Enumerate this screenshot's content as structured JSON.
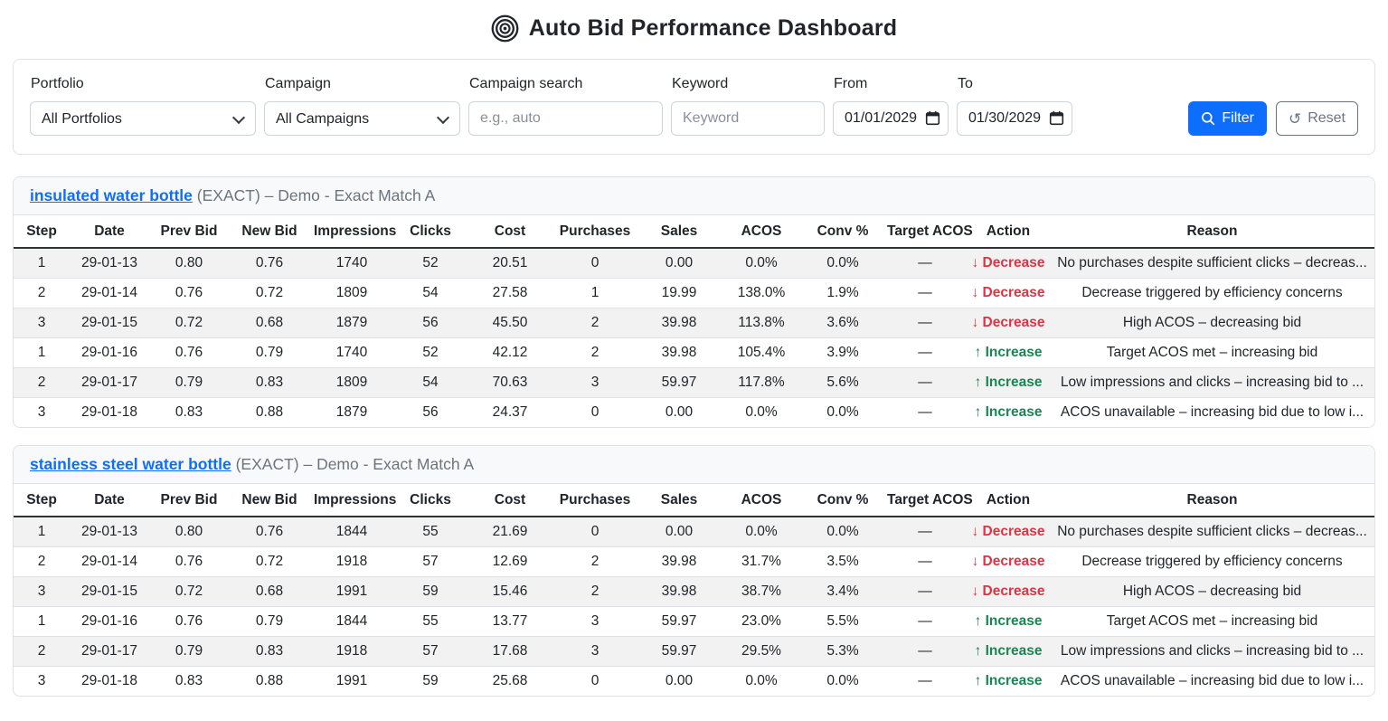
{
  "header": {
    "title": "Auto Bid Performance Dashboard"
  },
  "filters": {
    "portfolio": {
      "label": "Portfolio",
      "value": "All Portfolios"
    },
    "campaign": {
      "label": "Campaign",
      "value": "All Campaigns"
    },
    "campaign_search": {
      "label": "Campaign search",
      "placeholder": "e.g., auto"
    },
    "keyword": {
      "label": "Keyword",
      "placeholder": "Keyword"
    },
    "from": {
      "label": "From",
      "value": "01/01/2029"
    },
    "to": {
      "label": "To",
      "value": "01/30/2029"
    },
    "filter_button": "Filter",
    "reset_button": "Reset",
    "reset_icon_glyph": "↺"
  },
  "colors": {
    "accent_blue": "#0d6efd",
    "decrease_red": "#dc3545",
    "increase_green": "#198754",
    "muted_gray": "#6c757d"
  },
  "table_columns": [
    "Step",
    "Date",
    "Prev Bid",
    "New Bid",
    "Impressions",
    "Clicks",
    "Cost",
    "Purchases",
    "Sales",
    "ACOS",
    "Conv %",
    "Target ACOS",
    "Action",
    "Reason"
  ],
  "tables": [
    {
      "keyword": "insulated water bottle",
      "suffix": "(EXACT) – Demo - Exact Match A",
      "rows": [
        {
          "cells": [
            "1",
            "29-01-13",
            "0.80",
            "0.76",
            "1740",
            "52",
            "20.51",
            "0",
            "0.00",
            "0.0%",
            "0.0%",
            "—"
          ],
          "action": {
            "arrow": "↓",
            "label": "Decrease",
            "direction": "down"
          },
          "reason": "No purchases despite sufficient clicks – decreas..."
        },
        {
          "cells": [
            "2",
            "29-01-14",
            "0.76",
            "0.72",
            "1809",
            "54",
            "27.58",
            "1",
            "19.99",
            "138.0%",
            "1.9%",
            "—"
          ],
          "action": {
            "arrow": "↓",
            "label": "Decrease",
            "direction": "down"
          },
          "reason": "Decrease triggered by efficiency concerns"
        },
        {
          "cells": [
            "3",
            "29-01-15",
            "0.72",
            "0.68",
            "1879",
            "56",
            "45.50",
            "2",
            "39.98",
            "113.8%",
            "3.6%",
            "—"
          ],
          "action": {
            "arrow": "↓",
            "label": "Decrease",
            "direction": "down"
          },
          "reason": "High ACOS – decreasing bid"
        },
        {
          "cells": [
            "1",
            "29-01-16",
            "0.76",
            "0.79",
            "1740",
            "52",
            "42.12",
            "2",
            "39.98",
            "105.4%",
            "3.9%",
            "—"
          ],
          "action": {
            "arrow": "↑",
            "label": "Increase",
            "direction": "up"
          },
          "reason": "Target ACOS met – increasing bid"
        },
        {
          "cells": [
            "2",
            "29-01-17",
            "0.79",
            "0.83",
            "1809",
            "54",
            "70.63",
            "3",
            "59.97",
            "117.8%",
            "5.6%",
            "—"
          ],
          "action": {
            "arrow": "↑",
            "label": "Increase",
            "direction": "up"
          },
          "reason": "Low impressions and clicks – increasing bid to ..."
        },
        {
          "cells": [
            "3",
            "29-01-18",
            "0.83",
            "0.88",
            "1879",
            "56",
            "24.37",
            "0",
            "0.00",
            "0.0%",
            "0.0%",
            "—"
          ],
          "action": {
            "arrow": "↑",
            "label": "Increase",
            "direction": "up"
          },
          "reason": "ACOS unavailable – increasing bid due to low i..."
        }
      ]
    },
    {
      "keyword": "stainless steel water bottle",
      "suffix": "(EXACT) – Demo - Exact Match A",
      "rows": [
        {
          "cells": [
            "1",
            "29-01-13",
            "0.80",
            "0.76",
            "1844",
            "55",
            "21.69",
            "0",
            "0.00",
            "0.0%",
            "0.0%",
            "—"
          ],
          "action": {
            "arrow": "↓",
            "label": "Decrease",
            "direction": "down"
          },
          "reason": "No purchases despite sufficient clicks – decreas..."
        },
        {
          "cells": [
            "2",
            "29-01-14",
            "0.76",
            "0.72",
            "1918",
            "57",
            "12.69",
            "2",
            "39.98",
            "31.7%",
            "3.5%",
            "—"
          ],
          "action": {
            "arrow": "↓",
            "label": "Decrease",
            "direction": "down"
          },
          "reason": "Decrease triggered by efficiency concerns"
        },
        {
          "cells": [
            "3",
            "29-01-15",
            "0.72",
            "0.68",
            "1991",
            "59",
            "15.46",
            "2",
            "39.98",
            "38.7%",
            "3.4%",
            "—"
          ],
          "action": {
            "arrow": "↓",
            "label": "Decrease",
            "direction": "down"
          },
          "reason": "High ACOS – decreasing bid"
        },
        {
          "cells": [
            "1",
            "29-01-16",
            "0.76",
            "0.79",
            "1844",
            "55",
            "13.77",
            "3",
            "59.97",
            "23.0%",
            "5.5%",
            "—"
          ],
          "action": {
            "arrow": "↑",
            "label": "Increase",
            "direction": "up"
          },
          "reason": "Target ACOS met – increasing bid"
        },
        {
          "cells": [
            "2",
            "29-01-17",
            "0.79",
            "0.83",
            "1918",
            "57",
            "17.68",
            "3",
            "59.97",
            "29.5%",
            "5.3%",
            "—"
          ],
          "action": {
            "arrow": "↑",
            "label": "Increase",
            "direction": "up"
          },
          "reason": "Low impressions and clicks – increasing bid to ..."
        },
        {
          "cells": [
            "3",
            "29-01-18",
            "0.83",
            "0.88",
            "1991",
            "59",
            "25.68",
            "0",
            "0.00",
            "0.0%",
            "0.0%",
            "—"
          ],
          "action": {
            "arrow": "↑",
            "label": "Increase",
            "direction": "up"
          },
          "reason": "ACOS unavailable – increasing bid due to low i..."
        }
      ]
    }
  ]
}
